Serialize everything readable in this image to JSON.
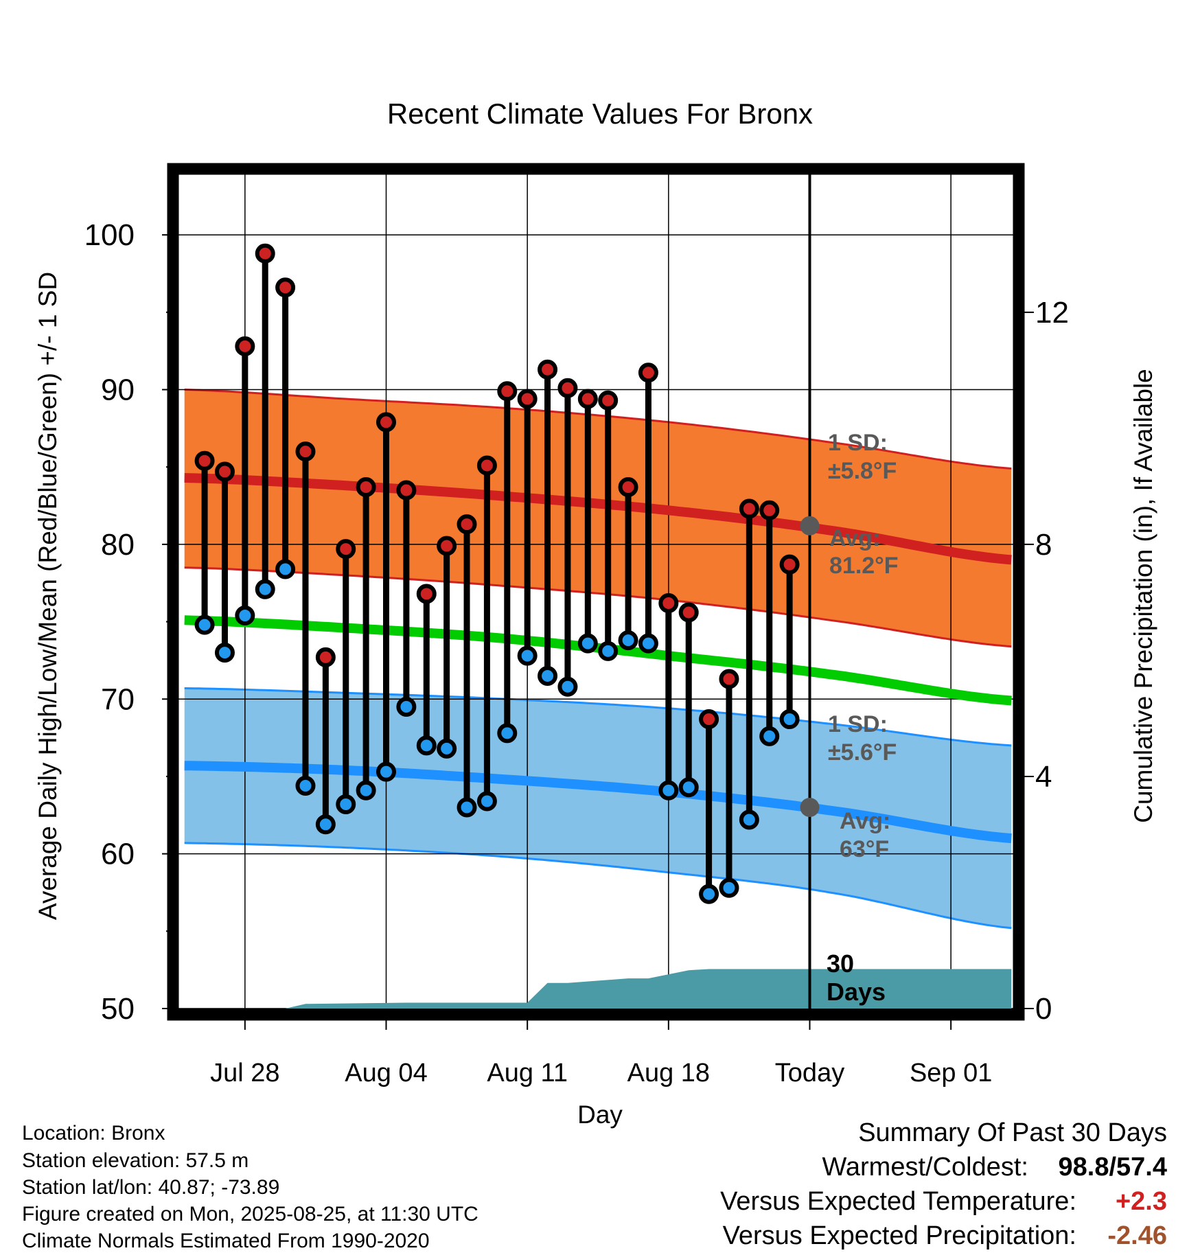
{
  "chart_data": {
    "type": "line",
    "title": "Recent Climate Values For Bronx",
    "xlabel": "Day",
    "ylabel": "Average Daily High/Low/Mean (Red/Blue/Green) +/- 1 SD",
    "y2label": "Cumulative Precipitation (in), If Available",
    "ylim": [
      50,
      104
    ],
    "y2lim": [
      0,
      14.4
    ],
    "yticks": [
      50,
      60,
      70,
      80,
      90,
      100
    ],
    "y2ticks": [
      0,
      4,
      8,
      12
    ],
    "x_tick_labels": [
      "Jul 28",
      "Aug 04",
      "Aug 11",
      "Aug 18",
      "Today",
      "Sep 01"
    ],
    "x_tick_days": [
      3,
      10,
      17,
      24,
      31,
      38
    ],
    "xlim": [
      -0.5,
      41.5
    ],
    "today_day": 31,
    "grid": true,
    "days": [
      1,
      2,
      3,
      4,
      5,
      6,
      7,
      8,
      9,
      10,
      11,
      12,
      13,
      14,
      15,
      16,
      17,
      18,
      19,
      20,
      21,
      22,
      23,
      24,
      25,
      26,
      27,
      28,
      29,
      30
    ],
    "daily_high": [
      85.4,
      84.7,
      92.8,
      98.8,
      96.6,
      86.0,
      72.7,
      79.7,
      83.7,
      87.9,
      83.5,
      76.8,
      79.9,
      81.3,
      85.1,
      89.9,
      89.4,
      91.3,
      90.1,
      89.4,
      89.3,
      83.7,
      91.1,
      76.2,
      75.6,
      68.7,
      71.3,
      82.3,
      82.2,
      78.7
    ],
    "daily_low": [
      74.8,
      73.0,
      75.4,
      77.1,
      78.4,
      64.4,
      61.9,
      63.2,
      64.1,
      65.3,
      69.5,
      67.0,
      66.8,
      63.0,
      63.4,
      67.8,
      72.8,
      71.5,
      70.8,
      73.6,
      73.1,
      73.8,
      73.6,
      64.1,
      64.3,
      57.4,
      57.8,
      62.2,
      67.6,
      68.7
    ],
    "normal_days": [
      0,
      8,
      16,
      24,
      32,
      41
    ],
    "normal_high": [
      84.3,
      83.8,
      83.1,
      82.2,
      80.9,
      79.0
    ],
    "normal_high_upper": [
      90.0,
      89.4,
      88.8,
      87.9,
      86.6,
      84.9
    ],
    "normal_high_lower": [
      78.5,
      78.0,
      77.3,
      76.4,
      75.1,
      73.4
    ],
    "normal_mean": [
      75.1,
      74.6,
      73.9,
      72.8,
      71.6,
      69.9
    ],
    "normal_low": [
      65.7,
      65.4,
      64.8,
      64.0,
      62.8,
      61.0
    ],
    "normal_low_upper": [
      70.7,
      70.4,
      70.0,
      69.4,
      68.4,
      67.0
    ],
    "normal_low_lower": [
      60.7,
      60.4,
      59.8,
      58.8,
      57.5,
      55.2
    ],
    "precip_days": [
      0,
      5,
      6,
      11,
      17,
      18,
      19,
      22,
      23,
      25,
      26,
      27,
      41
    ],
    "precip_cumulative": [
      0.0,
      0.0,
      0.08,
      0.1,
      0.1,
      0.44,
      0.44,
      0.52,
      0.52,
      0.66,
      0.68,
      0.68,
      0.68
    ],
    "annotations": {
      "high_sd_line1": "1 SD:",
      "high_sd_line2": "±5.8°F",
      "high_avg_line1": "Avg:",
      "high_avg_line2": "81.2°F",
      "low_sd_line1": "1 SD:",
      "low_sd_line2": "±5.6°F",
      "low_avg_line1": "Avg:",
      "low_avg_line2": "63°F",
      "window_line1": "30",
      "window_line2": "Days"
    },
    "today_high_avg": 81.2,
    "today_low_avg": 63,
    "colors": {
      "high_band": "#f47a30",
      "high_line": "#d12020",
      "low_band": "#83c1e8",
      "low_line": "#1e90ff",
      "mean_line": "#00cc00",
      "precip": "#4a9ba6",
      "high_dot": "#cc2222",
      "low_dot": "#2299ee",
      "annotation": "#595959"
    }
  },
  "footer": {
    "location": "Location: Bronx",
    "elevation": "Station elevation: 57.5 m",
    "latlon": "Station lat/lon: 40.87; -73.89",
    "created": "Figure created on Mon, 2025-08-25, at 11:30 UTC",
    "normals": "Climate Normals Estimated From 1990-2020"
  },
  "summary": {
    "title": "Summary Of Past 30 Days",
    "warm_cold_label": "Warmest/Coldest:",
    "warmest": "98.8",
    "separator": "/",
    "coldest": "57.4",
    "temp_label": "Versus Expected Temperature:",
    "temp_value": "+2.3",
    "precip_label": "Versus Expected Precipitation:",
    "precip_value": "-2.46",
    "temp_color": "#d12020",
    "precip_color": "#a0522d"
  }
}
